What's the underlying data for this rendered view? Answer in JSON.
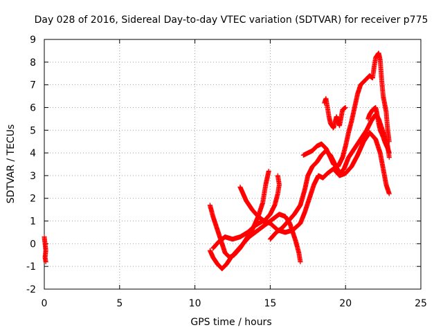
{
  "chart_data": {
    "type": "scatter",
    "title": "Day 028 of 2016, Sidereal Day-to-day VTEC variation (SDTVAR) for receiver p775",
    "xlabel": "GPS time / hours",
    "ylabel": "SDTVAR / TECUs",
    "xlim": [
      0,
      25
    ],
    "ylim": [
      -2,
      9
    ],
    "x_ticks": [
      "0",
      "5",
      "10",
      "15",
      "20",
      "25"
    ],
    "y_ticks": [
      "-2",
      "-1",
      "0",
      "1",
      "2",
      "3",
      "4",
      "5",
      "6",
      "7",
      "8",
      "9"
    ],
    "grid": true,
    "marker": "+",
    "colors": {
      "series": "#ff0000",
      "grid": "#a0a0a0",
      "axis": "#000000"
    },
    "series": [
      {
        "name": "",
        "traces": [
          [
            [
              0.0,
              0.3
            ],
            [
              0.05,
              0.0
            ],
            [
              0.1,
              -0.3
            ],
            [
              0.05,
              -0.6
            ],
            [
              0.1,
              -0.8
            ]
          ],
          [
            [
              11.0,
              1.7
            ],
            [
              11.2,
              1.2
            ],
            [
              11.4,
              0.8
            ],
            [
              11.6,
              0.4
            ],
            [
              11.8,
              0.0
            ],
            [
              12.0,
              -0.4
            ],
            [
              12.3,
              -0.6
            ],
            [
              12.6,
              -0.5
            ],
            [
              13.0,
              -0.2
            ],
            [
              13.4,
              0.2
            ],
            [
              13.8,
              0.6
            ],
            [
              14.2,
              1.2
            ],
            [
              14.5,
              1.8
            ],
            [
              14.7,
              2.6
            ],
            [
              14.9,
              3.2
            ]
          ],
          [
            [
              11.0,
              -0.3
            ],
            [
              11.2,
              -0.6
            ],
            [
              11.5,
              -0.9
            ],
            [
              11.8,
              -1.1
            ],
            [
              12.1,
              -0.9
            ],
            [
              12.4,
              -0.6
            ],
            [
              12.8,
              -0.3
            ],
            [
              13.2,
              0.0
            ],
            [
              13.6,
              0.3
            ],
            [
              14.0,
              0.5
            ],
            [
              14.4,
              0.7
            ],
            [
              14.8,
              0.9
            ],
            [
              15.2,
              1.1
            ],
            [
              15.6,
              1.3
            ],
            [
              16.0,
              1.2
            ],
            [
              16.3,
              0.9
            ],
            [
              16.5,
              0.5
            ],
            [
              16.7,
              0.1
            ],
            [
              16.9,
              -0.4
            ],
            [
              17.0,
              -0.8
            ]
          ],
          [
            [
              11.2,
              -0.2
            ],
            [
              11.6,
              0.1
            ],
            [
              12.0,
              0.3
            ],
            [
              12.5,
              0.2
            ],
            [
              13.0,
              0.3
            ],
            [
              13.5,
              0.5
            ],
            [
              14.0,
              0.8
            ],
            [
              14.5,
              1.0
            ],
            [
              15.0,
              0.9
            ],
            [
              15.5,
              0.6
            ],
            [
              16.0,
              0.5
            ],
            [
              16.5,
              0.6
            ],
            [
              17.0,
              0.9
            ],
            [
              17.3,
              1.4
            ],
            [
              17.6,
              2.0
            ],
            [
              17.9,
              2.6
            ],
            [
              18.2,
              3.0
            ],
            [
              18.5,
              2.9
            ],
            [
              18.8,
              3.1
            ],
            [
              19.2,
              3.3
            ],
            [
              19.6,
              3.0
            ],
            [
              20.0,
              3.1
            ],
            [
              20.4,
              3.4
            ],
            [
              20.8,
              3.9
            ],
            [
              21.2,
              4.5
            ],
            [
              21.6,
              4.9
            ],
            [
              22.0,
              4.6
            ],
            [
              22.3,
              4.0
            ],
            [
              22.5,
              3.3
            ],
            [
              22.7,
              2.6
            ],
            [
              22.9,
              2.2
            ]
          ],
          [
            [
              13.0,
              2.5
            ],
            [
              13.4,
              1.9
            ],
            [
              13.8,
              1.5
            ],
            [
              14.2,
              1.2
            ],
            [
              14.6,
              1.0
            ],
            [
              15.0,
              1.3
            ],
            [
              15.3,
              1.7
            ],
            [
              15.5,
              2.2
            ],
            [
              15.6,
              2.6
            ],
            [
              15.5,
              3.0
            ]
          ],
          [
            [
              15.0,
              0.2
            ],
            [
              15.4,
              0.5
            ],
            [
              15.8,
              0.7
            ],
            [
              16.2,
              1.0
            ],
            [
              16.6,
              1.3
            ],
            [
              17.0,
              1.7
            ],
            [
              17.3,
              2.4
            ],
            [
              17.5,
              3.0
            ],
            [
              17.8,
              3.4
            ],
            [
              18.1,
              3.6
            ],
            [
              18.4,
              3.9
            ],
            [
              18.7,
              4.1
            ],
            [
              19.0,
              3.9
            ],
            [
              19.3,
              3.5
            ],
            [
              19.6,
              3.1
            ],
            [
              19.9,
              3.3
            ],
            [
              20.2,
              3.8
            ],
            [
              20.5,
              4.1
            ],
            [
              20.8,
              4.4
            ],
            [
              21.1,
              4.7
            ],
            [
              21.4,
              5.0
            ],
            [
              21.7,
              5.4
            ],
            [
              22.0,
              5.7
            ],
            [
              22.2,
              5.5
            ],
            [
              22.4,
              5.1
            ],
            [
              22.6,
              4.7
            ],
            [
              22.8,
              4.3
            ],
            [
              22.9,
              3.8
            ]
          ],
          [
            [
              17.2,
              3.9
            ],
            [
              17.5,
              4.0
            ],
            [
              17.8,
              4.1
            ],
            [
              18.1,
              4.3
            ],
            [
              18.4,
              4.4
            ],
            [
              18.7,
              4.2
            ],
            [
              19.0,
              3.8
            ],
            [
              19.2,
              3.5
            ],
            [
              19.5,
              3.4
            ],
            [
              19.8,
              3.8
            ],
            [
              20.0,
              4.3
            ],
            [
              20.2,
              4.9
            ],
            [
              20.4,
              5.4
            ],
            [
              20.6,
              6.0
            ],
            [
              20.8,
              6.6
            ],
            [
              21.0,
              7.0
            ],
            [
              21.3,
              7.2
            ],
            [
              21.6,
              7.4
            ],
            [
              21.8,
              7.3
            ],
            [
              21.9,
              7.8
            ],
            [
              22.0,
              8.2
            ],
            [
              22.2,
              8.4
            ],
            [
              22.3,
              8.1
            ],
            [
              22.4,
              7.2
            ],
            [
              22.5,
              6.5
            ],
            [
              22.7,
              5.8
            ],
            [
              22.8,
              5.0
            ],
            [
              22.9,
              4.5
            ]
          ],
          [
            [
              18.6,
              6.2
            ],
            [
              18.7,
              6.4
            ],
            [
              18.8,
              6.0
            ],
            [
              18.9,
              5.6
            ],
            [
              19.0,
              5.3
            ],
            [
              19.2,
              5.1
            ],
            [
              19.4,
              5.6
            ],
            [
              19.6,
              5.2
            ],
            [
              19.8,
              5.9
            ],
            [
              20.0,
              6.0
            ]
          ],
          [
            [
              21.5,
              5.5
            ],
            [
              21.6,
              5.7
            ],
            [
              21.8,
              5.9
            ],
            [
              22.0,
              6.0
            ],
            [
              22.1,
              5.7
            ],
            [
              22.2,
              5.3
            ],
            [
              22.3,
              5.0
            ],
            [
              22.5,
              4.7
            ],
            [
              22.6,
              4.5
            ],
            [
              22.8,
              4.2
            ],
            [
              22.9,
              4.0
            ]
          ]
        ]
      }
    ]
  }
}
